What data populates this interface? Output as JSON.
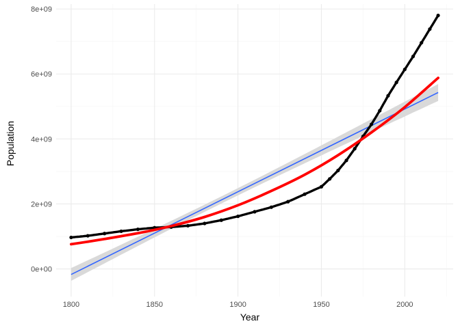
{
  "chart_data": {
    "type": "scatter",
    "xlabel": "Year",
    "ylabel": "Population",
    "xlim": [
      1791,
      2029
    ],
    "ylim": [
      -850000000,
      8150000000
    ],
    "x_ticks": [
      1800,
      1850,
      1900,
      1950,
      2000
    ],
    "x_tick_labels": [
      "1800",
      "1850",
      "1900",
      "1950",
      "2000"
    ],
    "y_ticks": [
      0,
      2000000000,
      4000000000,
      6000000000,
      8000000000
    ],
    "y_tick_labels": [
      "0e+00",
      "2e+09",
      "4e+09",
      "6e+09",
      "8e+09"
    ],
    "grid": true,
    "legend": "none",
    "colors": {
      "points": "#000000",
      "linear_fit": "#3366ff",
      "confidence_band": "#d9d9d9",
      "smooth_fit": "#ff0000",
      "grid_major": "#ebebeb",
      "grid_minor": "#f5f5f5"
    },
    "series": [
      {
        "type": "scatter",
        "x": [
          1800,
          1810,
          1820,
          1830,
          1840,
          1850,
          1860,
          1870,
          1880,
          1890,
          1900,
          1910,
          1920,
          1930,
          1940,
          1950,
          1955,
          1960,
          1965,
          1970,
          1975,
          1980,
          1985,
          1990,
          1995,
          2000,
          2005,
          2010,
          2015,
          2020
        ],
        "y": [
          970000000,
          1020000000,
          1090000000,
          1160000000,
          1220000000,
          1270000000,
          1290000000,
          1330000000,
          1400000000,
          1500000000,
          1620000000,
          1760000000,
          1900000000,
          2070000000,
          2300000000,
          2530000000,
          2770000000,
          3030000000,
          3340000000,
          3700000000,
          4080000000,
          4450000000,
          4870000000,
          5330000000,
          5740000000,
          6140000000,
          6540000000,
          6960000000,
          7380000000,
          7800000000
        ]
      },
      {
        "type": "line",
        "method": "lm",
        "x": [
          1800,
          2020
        ],
        "y": [
          -170000000,
          5430000000
        ],
        "band_lower": [
          -430000000,
          5190000000
        ],
        "band_upper": [
          90000000,
          5670000000
        ],
        "band_center": 1890,
        "band_halfwidth_center": 110000000
      },
      {
        "type": "line",
        "method": "smooth",
        "x": [
          1800,
          1820,
          1840,
          1860,
          1880,
          1900,
          1920,
          1940,
          1960,
          1980,
          2000,
          2020
        ],
        "y": [
          760000000,
          920000000,
          1100000000,
          1320000000,
          1600000000,
          1960000000,
          2400000000,
          2900000000,
          3500000000,
          4200000000,
          4980000000,
          5880000000
        ]
      }
    ]
  }
}
